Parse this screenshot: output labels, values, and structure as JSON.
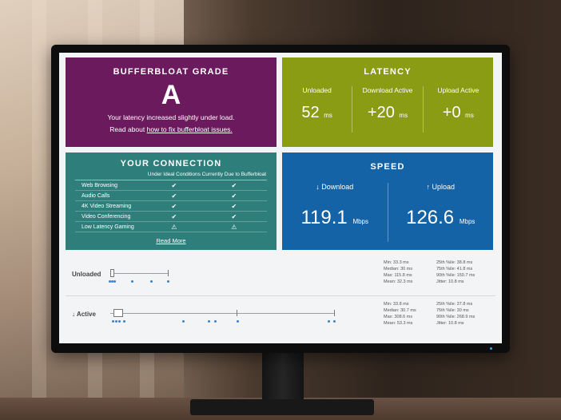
{
  "grade": {
    "title": "BUFFERBLOAT GRADE",
    "letter": "A",
    "message": "Your latency increased slightly under load.",
    "read_prefix": "Read about ",
    "read_link": "how to fix bufferbloat issues.",
    "color": "#6b1a5e"
  },
  "latency": {
    "title": "LATENCY",
    "color": "#8a9b14",
    "cols": [
      {
        "label": "Unloaded",
        "value": "52",
        "unit": "ms"
      },
      {
        "label": "Download Active",
        "value": "+20",
        "unit": "ms"
      },
      {
        "label": "Upload Active",
        "value": "+0",
        "unit": "ms"
      }
    ]
  },
  "connection": {
    "title": "YOUR CONNECTION",
    "color": "#2e7e7c",
    "headers": [
      "Under Ideal Conditions",
      "Currently Due to Bufferbloat"
    ],
    "rows": [
      {
        "name": "Web Browsing",
        "ideal": "✔",
        "current": "✔"
      },
      {
        "name": "Audio Calls",
        "ideal": "✔",
        "current": "✔"
      },
      {
        "name": "4K Video Streaming",
        "ideal": "✔",
        "current": "✔"
      },
      {
        "name": "Video Conferencing",
        "ideal": "✔",
        "current": "✔"
      },
      {
        "name": "Low Latency Gaming",
        "ideal": "⚠",
        "current": "⚠"
      }
    ],
    "read_more": "Read More"
  },
  "speed": {
    "title": "SPEED",
    "color": "#1363a6",
    "download_label": "↓ Download",
    "download_value": "119.1",
    "upload_label": "↑ Upload",
    "upload_value": "126.6",
    "unit": "Mbps"
  },
  "stats": {
    "unloaded": {
      "label": "Unloaded",
      "left": [
        "Min: 33.3 ms",
        "Median: 30 ms",
        "Max: 115.8 ms",
        "Mean: 32.3 ms"
      ],
      "right": [
        "25th %ile: 38.8 ms",
        "75th %ile: 41.8 ms",
        "90th %ile: 150.7 ms",
        "Jitter: 10.8 ms"
      ]
    },
    "active": {
      "label": "↓ Active",
      "left": [
        "Min: 33.8 ms",
        "Median: 30.7 ms",
        "Max: 308.6 ms",
        "Mean: 53.3 ms"
      ],
      "right": [
        "25th %ile: 37.8 ms",
        "75th %ile: 30 ms",
        "90th %ile: 268.9 ms",
        "Jitter: 10.8 ms"
      ]
    }
  }
}
